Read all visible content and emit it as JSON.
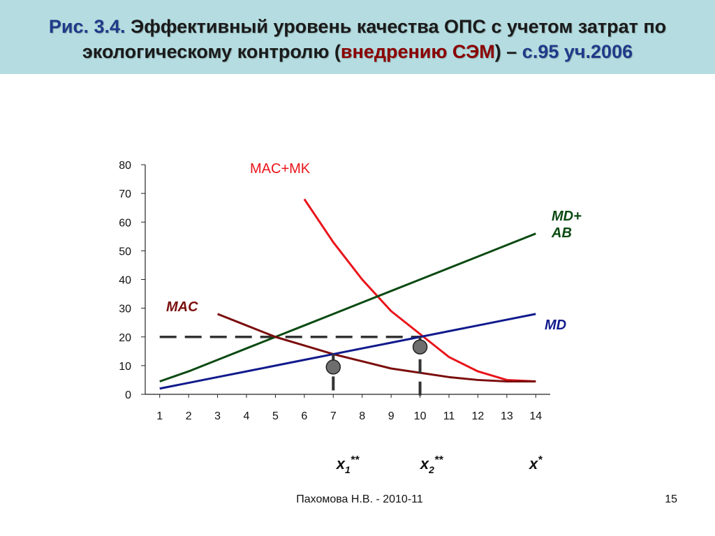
{
  "title": {
    "prefix": "Рис. 3.4.",
    "main_line1": " Эффективный уровень качества ОПС с учетом затрат по",
    "main_line2_start": "экологическому контролю (",
    "highlight": "внедрению СЭМ",
    "main_line2_end": ") – ",
    "source": "с.95 уч.2006"
  },
  "footer": {
    "author": "Пахомова Н.В. - 2010-11",
    "page": "15"
  },
  "colors": {
    "title_bar": "#b5dde1",
    "mac": "#7b0d0d",
    "mac_mk": "#e8141a",
    "md": "#101a8c",
    "md_ab": "#0a4a12",
    "dashed": "#333333",
    "marker": "#6e6e6e"
  },
  "chart_data": {
    "type": "line",
    "x": [
      1,
      2,
      3,
      4,
      5,
      6,
      7,
      8,
      9,
      10,
      11,
      12,
      13,
      14
    ],
    "xlim": [
      0.5,
      14.5
    ],
    "ylim": [
      0,
      80
    ],
    "y_ticks": [
      0,
      10,
      20,
      30,
      40,
      50,
      60,
      70,
      80
    ],
    "x_tick_labels": [
      "1",
      "2",
      "3",
      "4",
      "5",
      "6",
      "7",
      "8",
      "9",
      "10",
      "11",
      "12",
      "13",
      "14"
    ],
    "grid": false,
    "series": [
      {
        "name": "MAC+MK",
        "color": "#e8141a",
        "label_color": "#e8141a",
        "x": [
          6,
          7,
          8,
          9,
          10,
          11,
          12,
          13,
          14
        ],
        "y": [
          68,
          53,
          40,
          29,
          21,
          13,
          8,
          5,
          4.5
        ]
      },
      {
        "name": "MD+\nAB",
        "color": "#0a4a12",
        "label_color": "#0a4a12",
        "x": [
          1,
          2,
          3,
          4,
          5,
          6,
          7,
          8,
          9,
          10,
          11,
          12,
          13,
          14
        ],
        "y": [
          4.5,
          8,
          12,
          16,
          20,
          24,
          28,
          32,
          36,
          40,
          44,
          48,
          52,
          56
        ]
      },
      {
        "name": "MAC",
        "color": "#7b0d0d",
        "label_color": "#7b0d0d",
        "x": [
          3,
          4,
          5,
          6,
          7,
          8,
          9,
          10,
          11,
          12,
          13,
          14
        ],
        "y": [
          28,
          24,
          20,
          17,
          14,
          11.5,
          9,
          7.5,
          6,
          5,
          4.5,
          4.5
        ]
      },
      {
        "name": "MD",
        "color": "#101a8c",
        "label_color": "#101a8c",
        "x": [
          1,
          2,
          3,
          4,
          5,
          6,
          7,
          8,
          9,
          10,
          11,
          12,
          13,
          14
        ],
        "y": [
          2,
          4,
          6,
          8,
          10,
          12,
          14,
          16,
          18,
          20,
          22,
          24,
          26,
          28
        ]
      }
    ],
    "reference_line": {
      "y": 20,
      "x_from": 1,
      "x_to": 10
    },
    "drop_lines": [
      {
        "x": 7,
        "y_from": 14,
        "y_to": 0
      },
      {
        "x": 10,
        "y_from": 20,
        "y_to": -1
      }
    ],
    "markers": [
      {
        "x": 7,
        "y": 9.5
      },
      {
        "x": 10,
        "y": 16.5
      }
    ],
    "x_annotations": [
      {
        "base": "x",
        "sub": "1",
        "sup": "**",
        "x": 7.5
      },
      {
        "base": "x",
        "sub": "2",
        "sup": "**",
        "x": 10.4
      },
      {
        "base": "x",
        "sub": "",
        "sup": "*",
        "x": 14
      }
    ]
  }
}
